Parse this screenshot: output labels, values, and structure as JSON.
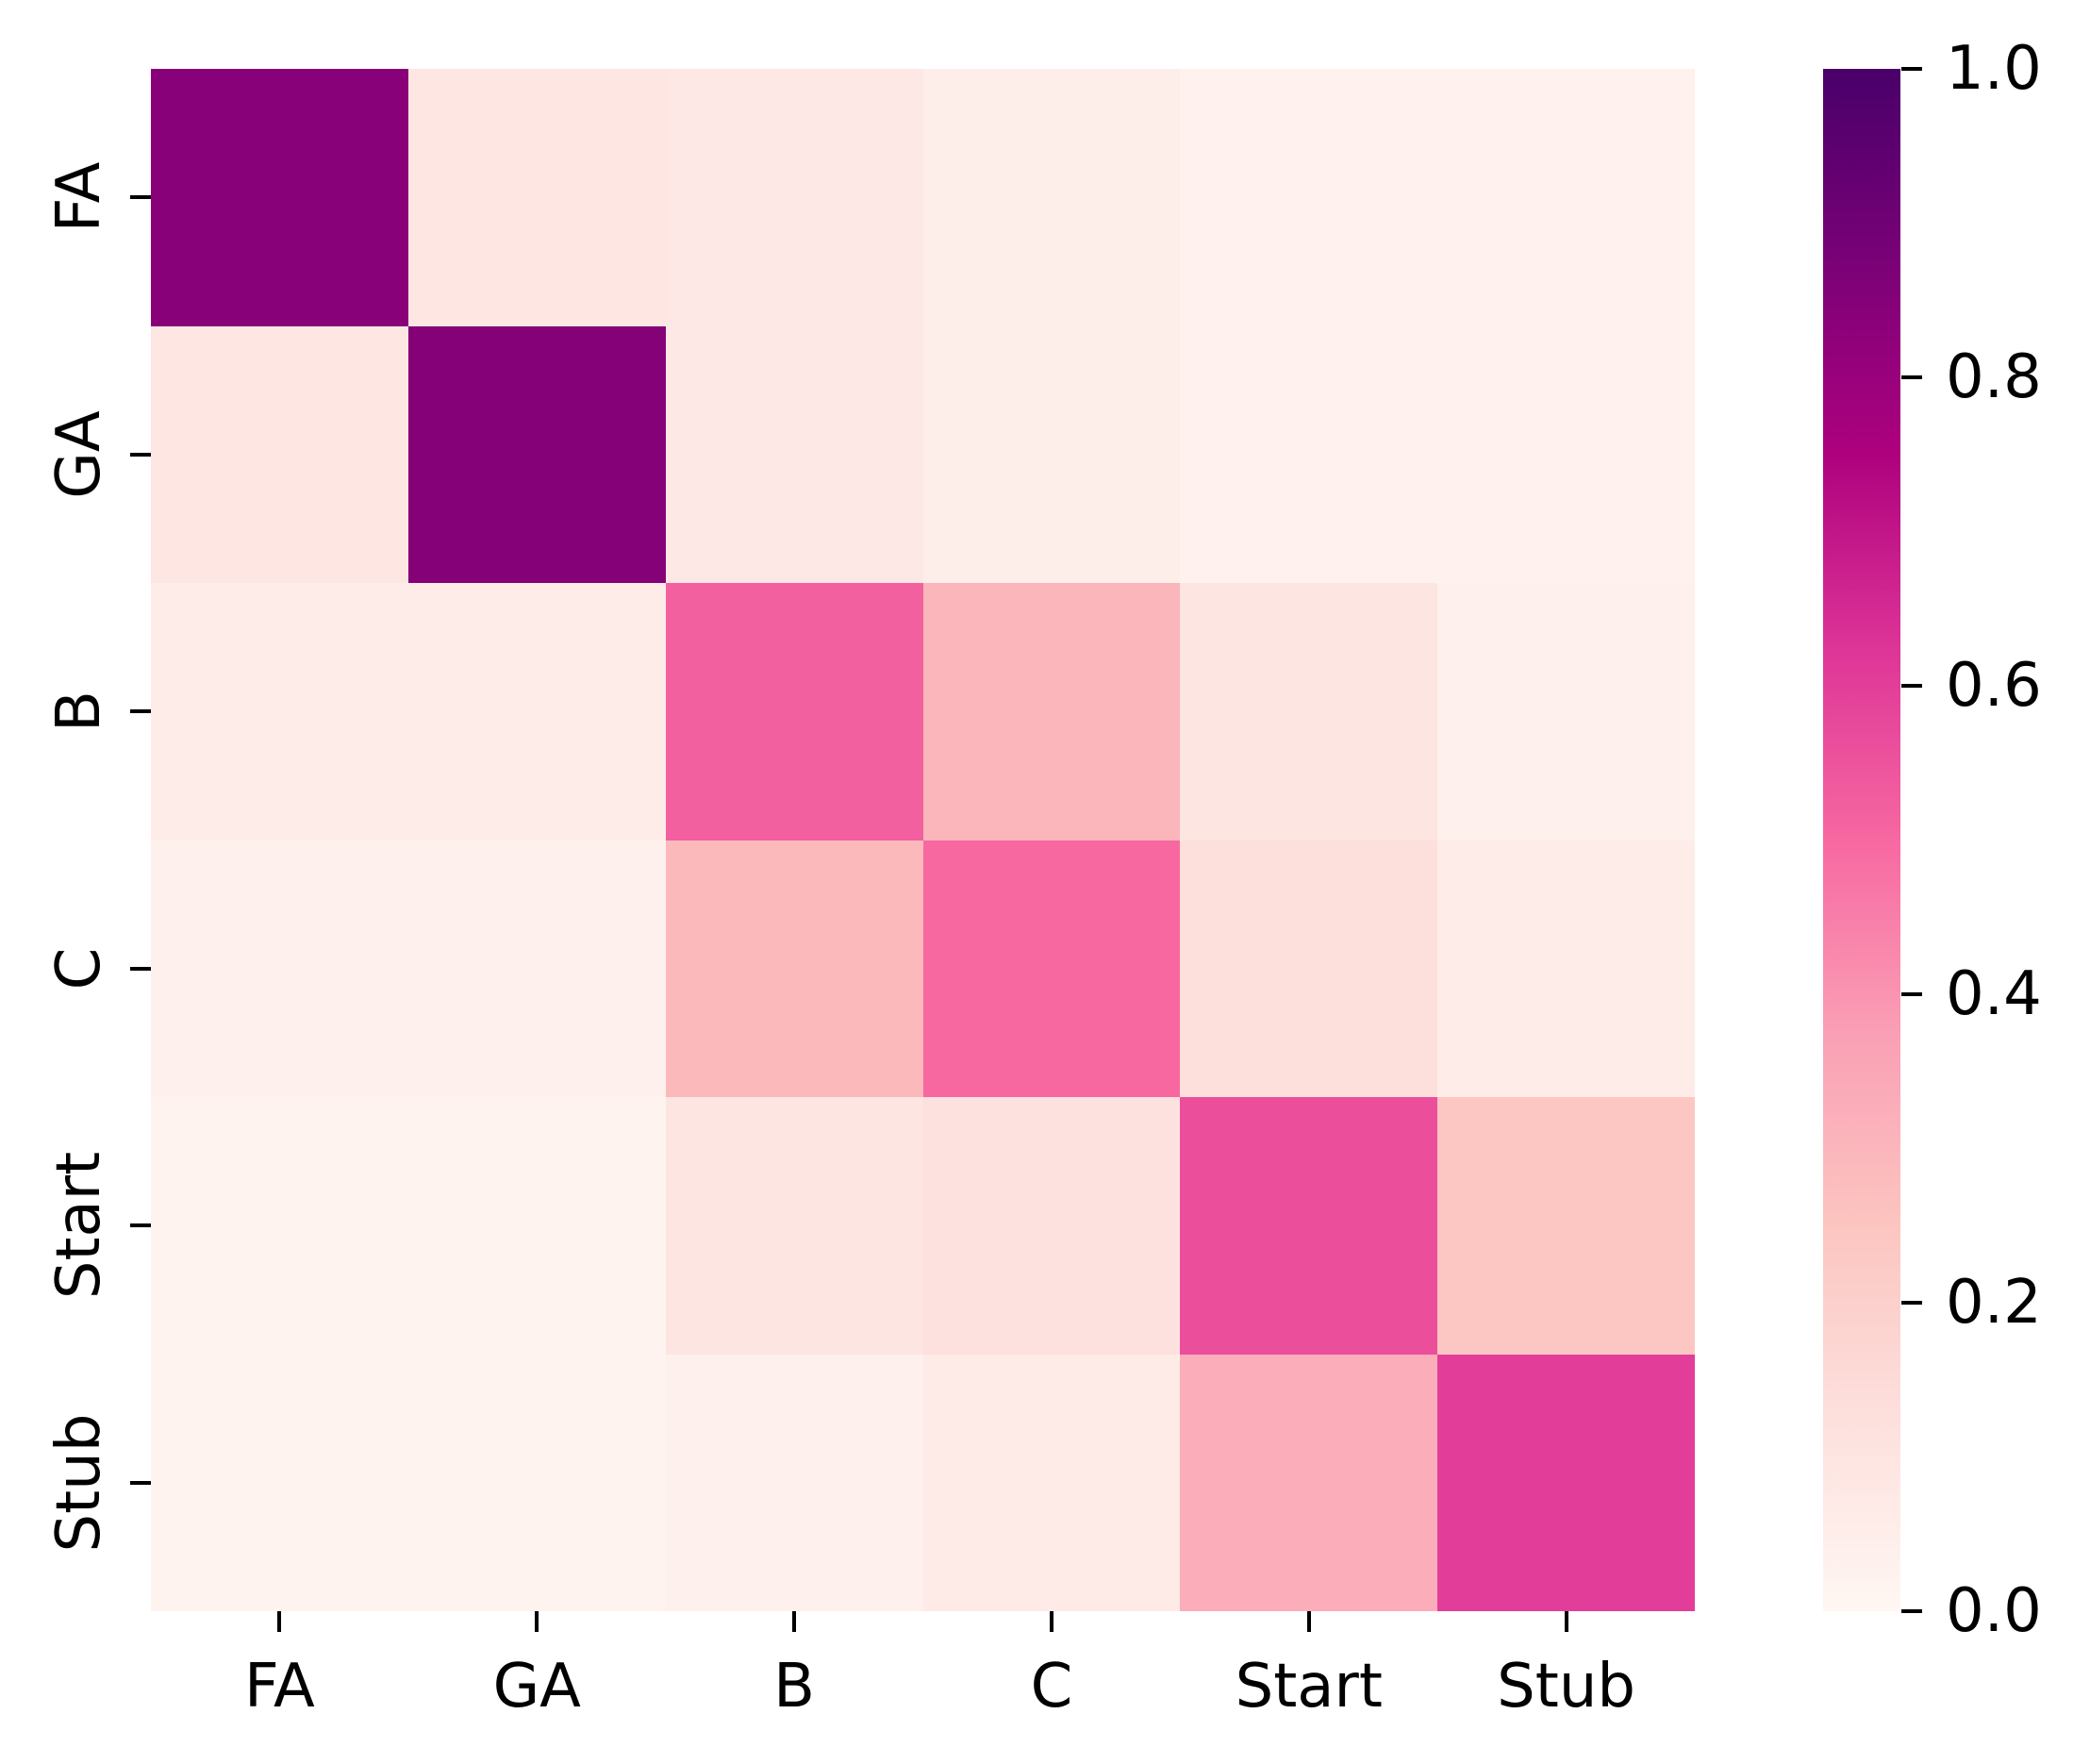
{
  "chart_data": {
    "type": "heatmap",
    "title": "",
    "xlabel": "",
    "ylabel": "",
    "categories": [
      "FA",
      "GA",
      "B",
      "C",
      "Start",
      "Stub"
    ],
    "x_tick_labels": [
      "FA",
      "GA",
      "B",
      "C",
      "Start",
      "Stub"
    ],
    "y_tick_labels": [
      "FA",
      "GA",
      "B",
      "C",
      "Start",
      "Stub"
    ],
    "matrix": [
      [
        0.84,
        0.09,
        0.08,
        0.05,
        0.03,
        0.03
      ],
      [
        0.09,
        0.85,
        0.08,
        0.05,
        0.03,
        0.03
      ],
      [
        0.06,
        0.06,
        0.52,
        0.3,
        0.1,
        0.04
      ],
      [
        0.04,
        0.04,
        0.29,
        0.5,
        0.13,
        0.06
      ],
      [
        0.02,
        0.02,
        0.1,
        0.12,
        0.56,
        0.24
      ],
      [
        0.02,
        0.02,
        0.04,
        0.07,
        0.33,
        0.6
      ]
    ],
    "value_range": [
      0.0,
      1.0
    ],
    "colormap": "RdPu",
    "colormap_stops": [
      {
        "pos": 0.0,
        "color": "#fff7f3"
      },
      {
        "pos": 0.125,
        "color": "#fde0dd"
      },
      {
        "pos": 0.25,
        "color": "#fcc5c0"
      },
      {
        "pos": 0.375,
        "color": "#fa9fb5"
      },
      {
        "pos": 0.5,
        "color": "#f768a1"
      },
      {
        "pos": 0.625,
        "color": "#dd3497"
      },
      {
        "pos": 0.75,
        "color": "#ae017e"
      },
      {
        "pos": 0.875,
        "color": "#7a0177"
      },
      {
        "pos": 1.0,
        "color": "#49006a"
      }
    ],
    "colorbar": {
      "position": "right",
      "tick_labels": [
        "1.0",
        "0.8",
        "0.6",
        "0.4",
        "0.2",
        "0.0"
      ],
      "tick_values": [
        1.0,
        0.8,
        0.6,
        0.4,
        0.2,
        0.0
      ]
    },
    "grid": false,
    "background_color": "#ffffff",
    "tick_color": "#000000",
    "label_color": "#000000"
  }
}
